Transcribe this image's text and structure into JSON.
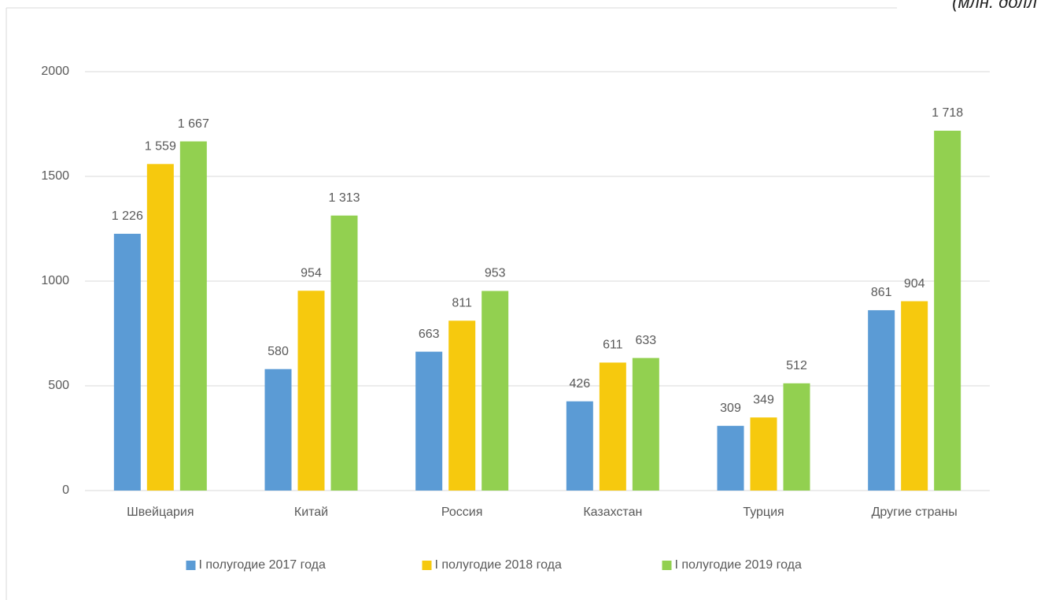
{
  "chart_data": {
    "type": "bar",
    "note": "(млн. долл",
    "categories": [
      "Швейцария",
      "Китай",
      "Россия",
      "Казахстан",
      "Турция",
      "Другие страны"
    ],
    "series": [
      {
        "name": "I полугодие 2017 года",
        "color": "#5b9bd5",
        "values": [
          1226,
          580,
          663,
          426,
          309,
          861
        ],
        "value_labels": [
          "1 226",
          "580",
          "663",
          "426",
          "309",
          "861"
        ]
      },
      {
        "name": "I полугодие 2018 года",
        "color": "#f6c90e",
        "values": [
          1559,
          954,
          811,
          611,
          349,
          904
        ],
        "value_labels": [
          "1 559",
          "954",
          "811",
          "611",
          "349",
          "904"
        ]
      },
      {
        "name": "I полугодие 2019 года",
        "color": "#92d050",
        "values": [
          1667,
          1313,
          953,
          633,
          512,
          1718
        ],
        "value_labels": [
          "1 667",
          "1 313",
          "953",
          "633",
          "512",
          "1 718"
        ]
      }
    ],
    "ylim": [
      0,
      2000
    ],
    "yticks": [
      0,
      500,
      1000,
      1500,
      2000
    ],
    "grid": true,
    "legend": "bottom"
  }
}
